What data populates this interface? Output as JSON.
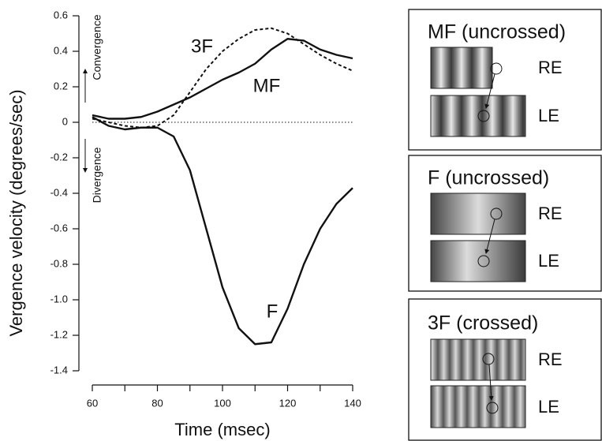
{
  "chart_data": {
    "type": "line",
    "xlabel": "Time (msec)",
    "ylabel": "Vergence velocity (degrees/sec)",
    "annotations": [
      "Convergence",
      "Divergence"
    ],
    "x": [
      60,
      65,
      70,
      75,
      80,
      85,
      90,
      95,
      100,
      105,
      110,
      115,
      120,
      125,
      130,
      135,
      140
    ],
    "series": [
      {
        "name": "MF",
        "color": "#111111",
        "dash": false,
        "values": [
          0.04,
          0.02,
          0.02,
          0.03,
          0.06,
          0.1,
          0.14,
          0.19,
          0.24,
          0.28,
          0.33,
          0.41,
          0.47,
          0.46,
          0.41,
          0.38,
          0.36
        ]
      },
      {
        "name": "F",
        "color": "#111111",
        "dash": false,
        "values": [
          0.03,
          -0.02,
          -0.04,
          -0.03,
          -0.03,
          -0.08,
          -0.27,
          -0.6,
          -0.93,
          -1.16,
          -1.25,
          -1.24,
          -1.05,
          -0.8,
          -0.6,
          -0.46,
          -0.37
        ]
      },
      {
        "name": "3F",
        "color": "#111111",
        "dash": true,
        "values": [
          0.02,
          0.0,
          -0.02,
          -0.03,
          -0.02,
          0.04,
          0.17,
          0.3,
          0.4,
          0.47,
          0.52,
          0.53,
          0.5,
          0.44,
          0.38,
          0.33,
          0.29
        ]
      }
    ],
    "xlim": [
      60,
      140
    ],
    "xticks": [
      60,
      80,
      100,
      120,
      140
    ],
    "xminor_ticks": [
      70,
      90,
      110,
      130
    ],
    "ylim": [
      -1.4,
      0.6
    ],
    "yticks": [
      {
        "value": -1.4,
        "label": "-1.4"
      },
      {
        "value": -1.2,
        "label": "-1.2"
      },
      {
        "value": -1,
        "label": "-1.0"
      },
      {
        "value": -0.8,
        "label": "-0.8"
      },
      {
        "value": -0.6,
        "label": "-0.6"
      },
      {
        "value": -0.4,
        "label": "-0.4"
      },
      {
        "value": -0.2,
        "label": "-0.2"
      },
      0,
      0.2,
      0.4,
      0.6
    ],
    "zero_line": true,
    "grid": false
  },
  "panels": [
    {
      "title": "MF (uncrossed)",
      "top": "RE",
      "bottom": "LE"
    },
    {
      "title": "F (uncrossed)",
      "top": "RE",
      "bottom": "LE"
    },
    {
      "title": "3F (crossed)",
      "top": "RE",
      "bottom": "LE"
    }
  ]
}
